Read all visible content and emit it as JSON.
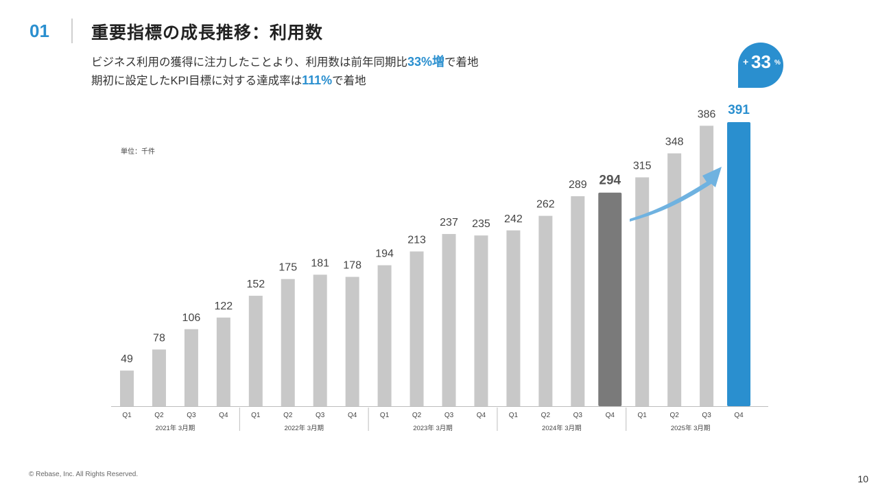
{
  "header": {
    "slide_number": "01",
    "title": "重要指標の成長推移：利用数"
  },
  "subtitle": {
    "line1_pre": "ビジネス利用の獲得に注力したことより、利用数は前年同期比",
    "line1_highlight": "33%増",
    "line1_post": "で着地",
    "line2_pre": "期初に設定したKPI目標に対する達成率は",
    "line2_highlight": "111%",
    "line2_post": "で着地"
  },
  "unit_label": "単位：千件",
  "badge": {
    "plus": "+",
    "value": "33",
    "unit": "%"
  },
  "footer": {
    "copyright": "© Rebase, Inc. All Rights Reserved.",
    "page": "10"
  },
  "colors": {
    "default_bar": "#c8c8c8",
    "highlight_prev": "#7a7a7a",
    "highlight_current": "#2a8fcf",
    "accent": "#2a8fcf",
    "arrow": "#6fb2e0"
  },
  "chart_data": {
    "type": "bar",
    "categories": [
      "Q1",
      "Q2",
      "Q3",
      "Q4",
      "Q1",
      "Q2",
      "Q3",
      "Q4",
      "Q1",
      "Q2",
      "Q3",
      "Q4",
      "Q1",
      "Q2",
      "Q3",
      "Q4",
      "Q1",
      "Q2",
      "Q3",
      "Q4"
    ],
    "groups": [
      "2021年 3月期",
      "2022年 3月期",
      "2023年 3月期",
      "2024年 3月期",
      "2025年 3月期"
    ],
    "values": [
      49,
      78,
      106,
      122,
      152,
      175,
      181,
      178,
      194,
      213,
      237,
      235,
      242,
      262,
      289,
      294,
      315,
      348,
      386,
      391
    ],
    "highlight": {
      "prev_index": 15,
      "current_index": 19
    },
    "ylim": [
      0,
      400
    ],
    "grid": false,
    "legend": "none"
  }
}
